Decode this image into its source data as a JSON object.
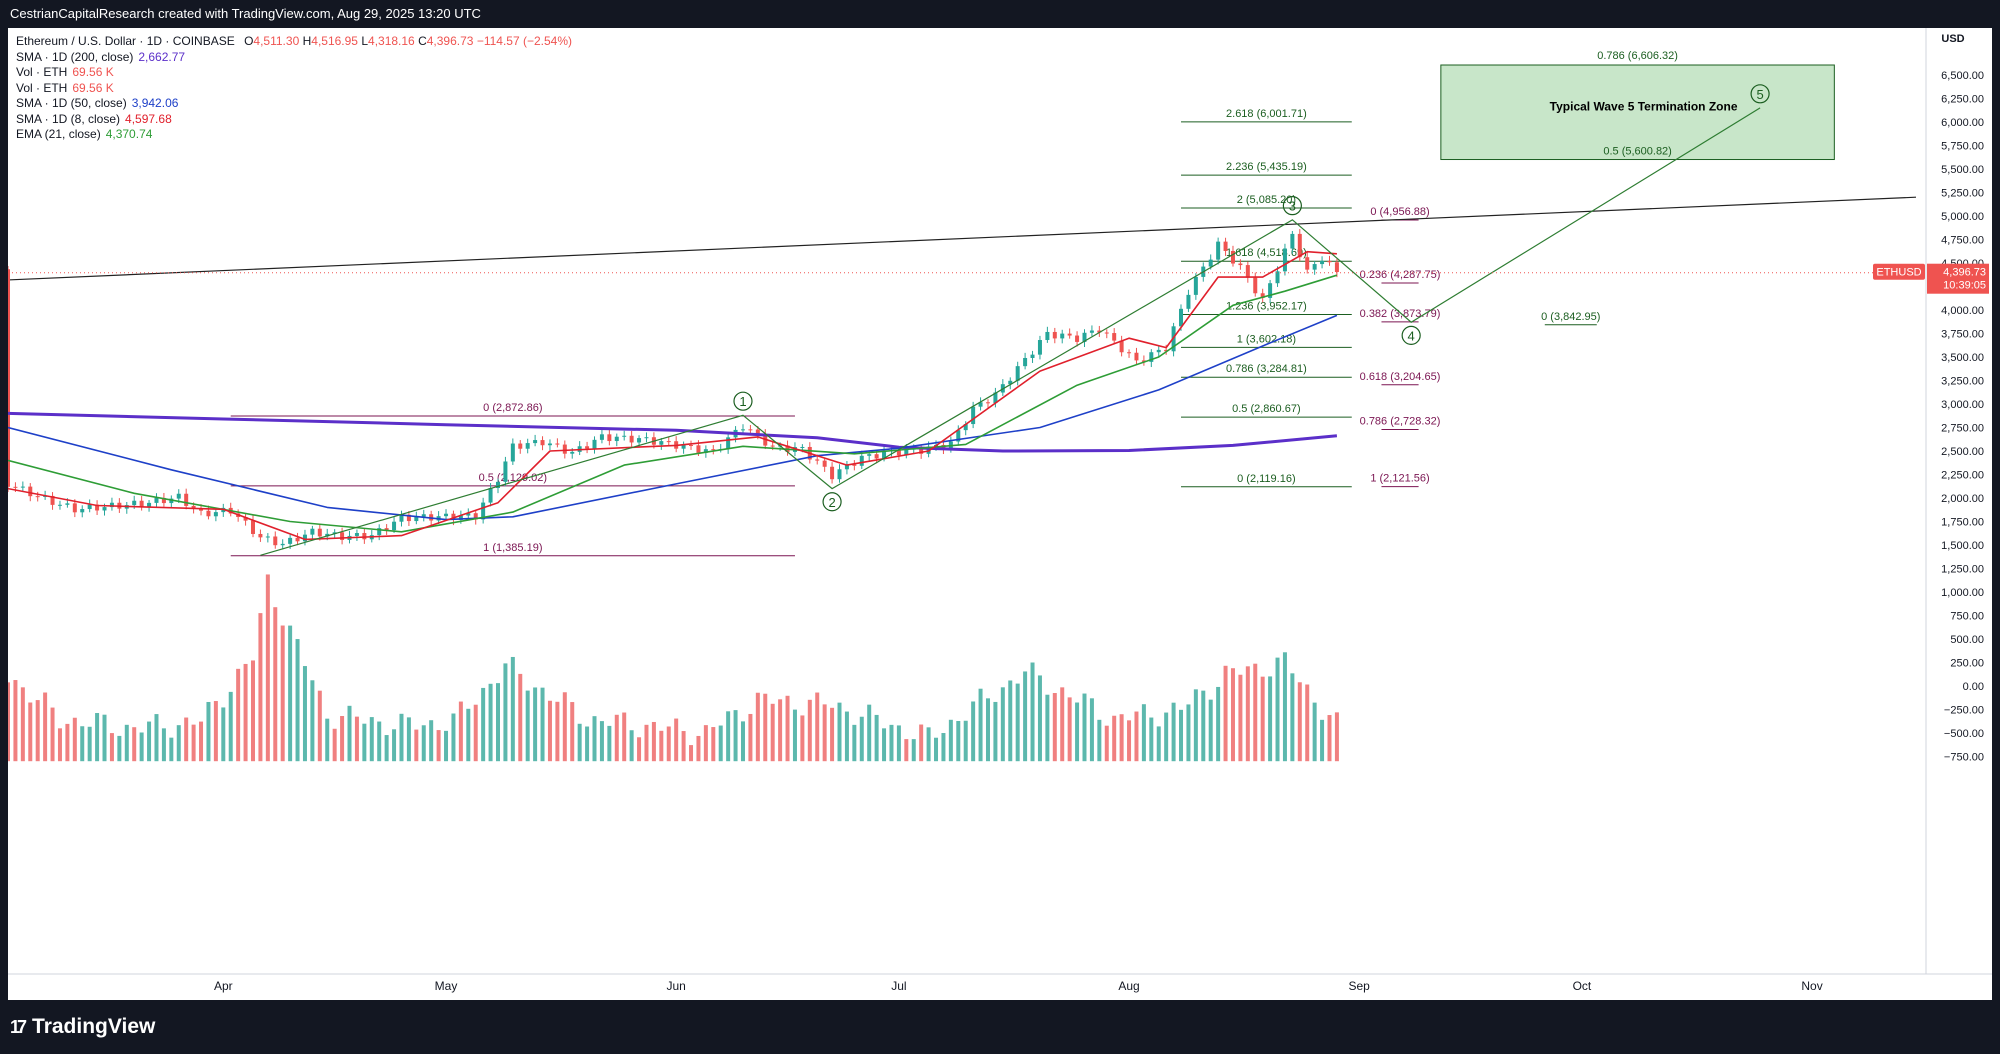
{
  "header": {
    "attribution": "CestrianCapitalResearch created with TradingView.com, Aug 29, 2025 13:20 UTC"
  },
  "legend": {
    "symbol_line": "Ethereum / U.S. Dollar · 1D · COINBASE",
    "ohlc": {
      "o_label": "O",
      "o": "4,511.30",
      "h_label": "H",
      "h": "4,516.95",
      "l_label": "L",
      "l": "4,318.16",
      "c_label": "C",
      "c": "4,396.73",
      "change": "−114.57 (−2.54%)"
    },
    "rows": [
      {
        "label": "SMA · 1D (200, close)",
        "value": "2,662.77",
        "color": "#5b2fc9"
      },
      {
        "label": "Vol · ETH",
        "value": "69.56 K",
        "color": "#ef5350"
      },
      {
        "label": "Vol · ETH",
        "value": "69.56 K",
        "color": "#ef5350"
      },
      {
        "label": "SMA · 1D (50, close)",
        "value": "3,942.06",
        "color": "#1e40c8"
      },
      {
        "label": "SMA · 1D (8, close)",
        "value": "4,597.68",
        "color": "#e0202c"
      },
      {
        "label": "EMA (21, close)",
        "value": "4,370.74",
        "color": "#2e9d36"
      }
    ]
  },
  "footer": {
    "brand": "TradingView",
    "brand_mark": "17"
  },
  "colors": {
    "up": "#26a69a",
    "down": "#ef5350",
    "up_vol": "#5cb8ad",
    "down_vol": "#f08080",
    "sma200": "#5b2fc9",
    "sma50": "#1e40c8",
    "sma8": "#e0202c",
    "ema21": "#2e9d36",
    "fib_green": "#1b5e20",
    "fib_purple": "#7b1552",
    "zone": "#c8e6c9"
  },
  "chart_data": {
    "type": "candlestick",
    "symbol": "ETHUSD",
    "timeframe": "1D",
    "y_axis": {
      "unit": "USD",
      "ticks": [
        -750,
        -500,
        -250,
        0,
        250,
        500,
        750,
        1000,
        1250,
        1500,
        1750,
        2000,
        2250,
        2500,
        2750,
        3000,
        3250,
        3500,
        3750,
        4000,
        4250,
        4500,
        4750,
        5000,
        5250,
        5500,
        5750,
        6000,
        6250,
        6500
      ],
      "tick_labels": [
        "−750.00",
        "−500.00",
        "−250.00",
        "0.00",
        "250.00",
        "500.00",
        "750.00",
        "1,000.00",
        "1,250.00",
        "1,500.00",
        "1,750.00",
        "2,000.00",
        "2,250.00",
        "2,500.00",
        "2,750.00",
        "3,000.00",
        "3,250.00",
        "3,500.00",
        "3,750.00",
        "4,000.00",
        "4,250.00",
        "4,500.00",
        "4,750.00",
        "5,000.00",
        "5,250.00",
        "5,500.00",
        "5,750.00",
        "6,000.00",
        "6,250.00",
        "6,500.00"
      ]
    },
    "x_axis": {
      "labels": [
        "Apr",
        "May",
        "Jun",
        "Jul",
        "Aug",
        "Sep",
        "Oct",
        "Nov"
      ],
      "label_dates": [
        "2025-04-01",
        "2025-05-01",
        "2025-06-01",
        "2025-07-01",
        "2025-08-01",
        "2025-09-01",
        "2025-10-01",
        "2025-11-01"
      ],
      "start": "2025-03-03",
      "end": "2025-11-15"
    },
    "last_price": {
      "label": "ETHUSD",
      "value": "4,396.73",
      "countdown": "10:39:05",
      "price": 4396.73
    },
    "close_path": [
      [
        "2025-03-03",
        2150
      ],
      [
        "2025-03-08",
        1985
      ],
      [
        "2025-03-12",
        1880
      ],
      [
        "2025-03-18",
        1920
      ],
      [
        "2025-03-22",
        1950
      ],
      [
        "2025-03-26",
        2010
      ],
      [
        "2025-03-29",
        1830
      ],
      [
        "2025-04-02",
        1870
      ],
      [
        "2025-04-06",
        1580
      ],
      [
        "2025-04-09",
        1510
      ],
      [
        "2025-04-13",
        1640
      ],
      [
        "2025-04-17",
        1590
      ],
      [
        "2025-04-21",
        1600
      ],
      [
        "2025-04-25",
        1790
      ],
      [
        "2025-04-30",
        1800
      ],
      [
        "2025-05-05",
        1810
      ],
      [
        "2025-05-08",
        2210
      ],
      [
        "2025-05-10",
        2550
      ],
      [
        "2025-05-14",
        2600
      ],
      [
        "2025-05-18",
        2480
      ],
      [
        "2025-05-22",
        2650
      ],
      [
        "2025-05-28",
        2620
      ],
      [
        "2025-06-02",
        2550
      ],
      [
        "2025-06-06",
        2490
      ],
      [
        "2025-06-10",
        2770
      ],
      [
        "2025-06-14",
        2540
      ],
      [
        "2025-06-18",
        2520
      ],
      [
        "2025-06-22",
        2240
      ],
      [
        "2025-06-26",
        2430
      ],
      [
        "2025-06-30",
        2490
      ],
      [
        "2025-07-04",
        2510
      ],
      [
        "2025-07-08",
        2580
      ],
      [
        "2025-07-11",
        2950
      ],
      [
        "2025-07-14",
        3100
      ],
      [
        "2025-07-17",
        3380
      ],
      [
        "2025-07-21",
        3750
      ],
      [
        "2025-07-25",
        3700
      ],
      [
        "2025-07-28",
        3800
      ],
      [
        "2025-08-02",
        3450
      ],
      [
        "2025-08-06",
        3600
      ],
      [
        "2025-08-09",
        4200
      ],
      [
        "2025-08-13",
        4700
      ],
      [
        "2025-08-16",
        4450
      ],
      [
        "2025-08-19",
        4100
      ],
      [
        "2025-08-23",
        4800
      ],
      [
        "2025-08-25",
        4400
      ],
      [
        "2025-08-27",
        4560
      ],
      [
        "2025-08-29",
        4396
      ]
    ],
    "volume_path": [
      [
        "2025-03-03",
        120
      ],
      [
        "2025-03-10",
        -350
      ],
      [
        "2025-03-20",
        -450
      ],
      [
        "2025-03-29",
        -380
      ],
      [
        "2025-04-05",
        300
      ],
      [
        "2025-04-07",
        1120
      ],
      [
        "2025-04-15",
        -300
      ],
      [
        "2025-04-25",
        -420
      ],
      [
        "2025-05-02",
        -380
      ],
      [
        "2025-05-09",
        210
      ],
      [
        "2025-05-20",
        -350
      ],
      [
        "2025-06-05",
        -500
      ],
      [
        "2025-06-12",
        -150
      ],
      [
        "2025-06-22",
        -200
      ],
      [
        "2025-07-05",
        -550
      ],
      [
        "2025-07-18",
        150
      ],
      [
        "2025-07-30",
        -350
      ],
      [
        "2025-08-08",
        -250
      ],
      [
        "2025-08-14",
        120
      ],
      [
        "2025-08-22",
        250
      ],
      [
        "2025-08-29",
        -420
      ]
    ],
    "indicators": {
      "sma200": [
        [
          "2025-03-03",
          2900
        ],
        [
          "2025-04-01",
          2840
        ],
        [
          "2025-05-01",
          2780
        ],
        [
          "2025-06-01",
          2720
        ],
        [
          "2025-06-20",
          2640
        ],
        [
          "2025-07-01",
          2540
        ],
        [
          "2025-07-15",
          2500
        ],
        [
          "2025-08-01",
          2505
        ],
        [
          "2025-08-15",
          2560
        ],
        [
          "2025-08-29",
          2662.77
        ]
      ],
      "sma50": [
        [
          "2025-03-03",
          2750
        ],
        [
          "2025-03-25",
          2300
        ],
        [
          "2025-04-15",
          1900
        ],
        [
          "2025-05-01",
          1770
        ],
        [
          "2025-05-10",
          1800
        ],
        [
          "2025-06-01",
          2150
        ],
        [
          "2025-06-20",
          2450
        ],
        [
          "2025-07-01",
          2530
        ],
        [
          "2025-07-20",
          2750
        ],
        [
          "2025-08-05",
          3150
        ],
        [
          "2025-08-20",
          3650
        ],
        [
          "2025-08-29",
          3942.06
        ]
      ],
      "sma8": [
        [
          "2025-03-03",
          2100
        ],
        [
          "2025-03-15",
          1920
        ],
        [
          "2025-04-01",
          1880
        ],
        [
          "2025-04-12",
          1560
        ],
        [
          "2025-04-25",
          1600
        ],
        [
          "2025-05-08",
          1950
        ],
        [
          "2025-05-15",
          2500
        ],
        [
          "2025-06-01",
          2560
        ],
        [
          "2025-06-12",
          2650
        ],
        [
          "2025-06-24",
          2350
        ],
        [
          "2025-07-05",
          2500
        ],
        [
          "2025-07-20",
          3350
        ],
        [
          "2025-08-01",
          3700
        ],
        [
          "2025-08-06",
          3600
        ],
        [
          "2025-08-13",
          4350
        ],
        [
          "2025-08-19",
          4350
        ],
        [
          "2025-08-25",
          4620
        ],
        [
          "2025-08-29",
          4597.68
        ]
      ],
      "ema21": [
        [
          "2025-03-03",
          2400
        ],
        [
          "2025-03-20",
          2050
        ],
        [
          "2025-04-10",
          1750
        ],
        [
          "2025-04-25",
          1640
        ],
        [
          "2025-05-10",
          1850
        ],
        [
          "2025-05-25",
          2350
        ],
        [
          "2025-06-10",
          2550
        ],
        [
          "2025-06-25",
          2470
        ],
        [
          "2025-07-10",
          2570
        ],
        [
          "2025-07-25",
          3200
        ],
        [
          "2025-08-05",
          3500
        ],
        [
          "2025-08-15",
          4050
        ],
        [
          "2025-08-22",
          4200
        ],
        [
          "2025-08-29",
          4370.74
        ]
      ]
    },
    "trendline": [
      [
        "2025-03-03",
        4320
      ],
      [
        "2025-11-15",
        5200
      ]
    ],
    "fib_sets": [
      {
        "color": "purple",
        "x": [
          "2025-04-02",
          "2025-06-17"
        ],
        "levels": [
          [
            2872.86,
            "0 (2,872.86)"
          ],
          [
            2129.02,
            "0.5 (2,129.02)"
          ],
          [
            1385.19,
            "1 (1,385.19)"
          ]
        ]
      },
      {
        "color": "green",
        "x": [
          "2025-08-08",
          "2025-08-31"
        ],
        "levels": [
          [
            6001.71,
            "2.618 (6,001.71)"
          ],
          [
            5435.19,
            "2.236 (5,435.19)"
          ],
          [
            5085.2,
            "2 (5,085.20)"
          ],
          [
            4518.69,
            "1.618 (4,518.69)"
          ],
          [
            3952.17,
            "1.236 (3,952.17)"
          ],
          [
            3602.18,
            "1 (3,602.18)"
          ],
          [
            3284.81,
            "0.786 (3,284.81)"
          ],
          [
            2860.67,
            "0.5 (2,860.67)"
          ],
          [
            2119.16,
            "0 (2,119.16)"
          ]
        ]
      },
      {
        "color": "purple",
        "x": [
          "2025-09-04",
          "2025-09-09"
        ],
        "levels": [
          [
            4956.88,
            "0 (4,956.88)"
          ],
          [
            4287.75,
            "0.236 (4,287.75)"
          ],
          [
            3873.79,
            "0.382 (3,873.79)"
          ],
          [
            3204.65,
            "0.618 (3,204.65)"
          ],
          [
            2728.32,
            "0.786 (2,728.32)"
          ],
          [
            2121.56,
            "1 (2,121.56)"
          ]
        ]
      },
      {
        "color": "green",
        "x": [
          "2025-09-26",
          "2025-10-03"
        ],
        "levels": [
          [
            3842.95,
            "0 (3,842.95)"
          ]
        ]
      }
    ],
    "zone": {
      "label": "Typical Wave 5 Termination Zone",
      "x": [
        "2025-09-12",
        "2025-11-04"
      ],
      "y": [
        5600.82,
        6606.32
      ],
      "top_label": "0.786 (6,606.32)",
      "bottom_label": "0.5 (5,600.82)"
    },
    "wave_path": [
      [
        "2025-04-06",
        1390
      ],
      [
        "2025-06-10",
        2880
      ],
      [
        "2025-06-22",
        2100
      ],
      [
        "2025-08-23",
        4960
      ],
      [
        "2025-09-08",
        3870
      ],
      [
        "2025-10-25",
        6150
      ]
    ],
    "wave_labels": [
      {
        "label": "1",
        "x": "2025-06-10",
        "y": 3030
      },
      {
        "label": "2",
        "x": "2025-06-22",
        "y": 1960
      },
      {
        "label": "3",
        "x": "2025-08-23",
        "y": 5110
      },
      {
        "label": "4",
        "x": "2025-09-08",
        "y": 3730
      },
      {
        "label": "5",
        "x": "2025-10-25",
        "y": 6300
      }
    ]
  }
}
